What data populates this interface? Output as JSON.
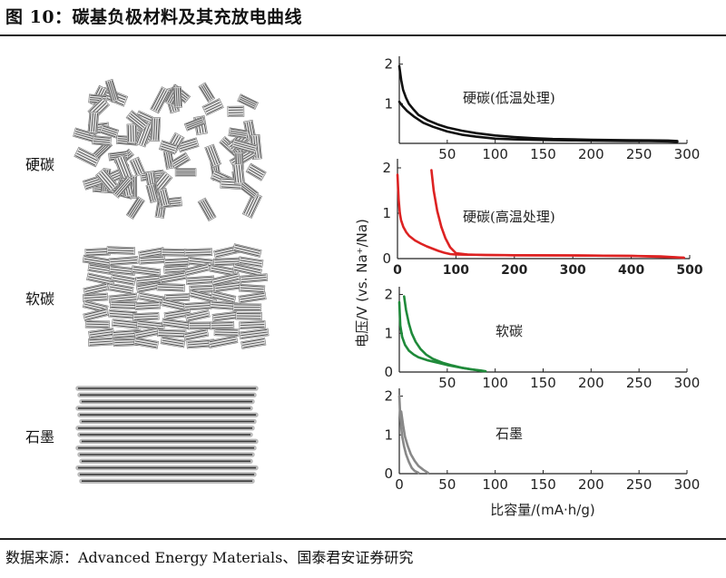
{
  "figure": {
    "title": "图 10：碳基负极材料及其充放电曲线",
    "source": "数据来源：Advanced Energy Materials、国泰君安证券研究"
  },
  "left_panel": {
    "labels": [
      "硬碳",
      "软碳",
      "石墨"
    ]
  },
  "chart_data": [
    {
      "type": "line",
      "name": "硬碳(低温处理)",
      "annotation": "硬碳(低温处理)",
      "xlim": [
        0,
        300
      ],
      "ylim": [
        0,
        2.2
      ],
      "xticks": [
        50,
        100,
        150,
        200,
        250,
        300
      ],
      "yticks": [
        1,
        2
      ],
      "color": "#111111",
      "series": [
        {
          "x": [
            0,
            2,
            4,
            7,
            10,
            15,
            20,
            30,
            40,
            50,
            65,
            80,
            100,
            120,
            140,
            160,
            180,
            200,
            220,
            240,
            260,
            280,
            290
          ],
          "y": [
            1.95,
            1.6,
            1.35,
            1.15,
            1.0,
            0.85,
            0.72,
            0.58,
            0.48,
            0.4,
            0.32,
            0.26,
            0.2,
            0.16,
            0.13,
            0.11,
            0.1,
            0.09,
            0.085,
            0.08,
            0.075,
            0.07,
            0.06
          ]
        },
        {
          "x": [
            0,
            3,
            8,
            15,
            25,
            35,
            50,
            65,
            80,
            100,
            120,
            140,
            160,
            180,
            200,
            220,
            240,
            260,
            280,
            290
          ],
          "y": [
            1.05,
            0.95,
            0.82,
            0.68,
            0.52,
            0.42,
            0.3,
            0.22,
            0.17,
            0.12,
            0.1,
            0.09,
            0.08,
            0.075,
            0.07,
            0.065,
            0.06,
            0.06,
            0.05,
            0.04
          ]
        }
      ]
    },
    {
      "type": "line",
      "name": "硬碳(高温处理)",
      "annotation": "硬碳(高温处理)",
      "ylabel": "电压/V (vs. Na⁺/Na)",
      "xlim": [
        0,
        500
      ],
      "ylim": [
        0,
        2.2
      ],
      "xticks": [
        0,
        100,
        200,
        300,
        400,
        500
      ],
      "yticks": [
        0,
        1,
        2
      ],
      "color": "#dd2222",
      "series": [
        {
          "x": [
            0,
            2,
            4,
            6,
            10,
            15,
            20,
            30,
            40,
            50,
            60,
            70,
            80,
            90,
            100,
            150,
            200,
            300,
            400,
            450,
            490
          ],
          "y": [
            1.85,
            1.3,
            1.0,
            0.85,
            0.7,
            0.58,
            0.5,
            0.4,
            0.33,
            0.27,
            0.22,
            0.17,
            0.13,
            0.1,
            0.09,
            0.08,
            0.075,
            0.07,
            0.06,
            0.05,
            0.02
          ]
        },
        {
          "x": [
            58,
            62,
            68,
            75,
            82,
            90,
            100,
            120,
            150,
            200,
            300,
            400,
            490
          ],
          "y": [
            1.95,
            1.5,
            1.05,
            0.7,
            0.45,
            0.25,
            0.12,
            0.09,
            0.08,
            0.075,
            0.07,
            0.06,
            0.02
          ]
        }
      ]
    },
    {
      "type": "line",
      "name": "软碳",
      "annotation": "软碳",
      "xlim": [
        0,
        300
      ],
      "ylim": [
        0,
        2.2
      ],
      "xticks": [
        50,
        100,
        150,
        200,
        250,
        300
      ],
      "yticks": [
        0,
        1,
        2
      ],
      "color": "#1f8a3a",
      "series": [
        {
          "x": [
            0,
            1,
            3,
            6,
            10,
            15,
            20,
            30,
            40,
            50,
            60,
            70,
            80,
            88
          ],
          "y": [
            1.8,
            1.2,
            0.9,
            0.7,
            0.55,
            0.45,
            0.38,
            0.3,
            0.24,
            0.18,
            0.13,
            0.09,
            0.05,
            0.02
          ]
        },
        {
          "x": [
            5,
            7,
            10,
            13,
            17,
            22,
            28,
            35,
            45,
            55,
            65,
            75,
            85,
            90
          ],
          "y": [
            1.95,
            1.6,
            1.25,
            1.0,
            0.78,
            0.6,
            0.45,
            0.34,
            0.24,
            0.17,
            0.11,
            0.07,
            0.04,
            0.02
          ]
        }
      ]
    },
    {
      "type": "line",
      "name": "石墨",
      "annotation": "石墨",
      "xlabel": "比容量/(mA·h/g)",
      "xlim": [
        0,
        300
      ],
      "ylim": [
        0,
        2.2
      ],
      "xticks": [
        0,
        50,
        100,
        150,
        200,
        250,
        300
      ],
      "yticks": [
        0,
        1,
        2
      ],
      "color": "#888888",
      "series": [
        {
          "x": [
            0,
            1,
            2,
            3,
            5,
            7,
            10,
            13,
            16,
            20
          ],
          "y": [
            2.0,
            1.5,
            1.2,
            0.95,
            0.7,
            0.5,
            0.3,
            0.15,
            0.07,
            0.02
          ]
        },
        {
          "x": [
            2,
            4,
            6,
            9,
            12,
            16,
            20,
            25,
            30
          ],
          "y": [
            1.6,
            1.25,
            0.95,
            0.7,
            0.5,
            0.33,
            0.2,
            0.1,
            0.02
          ]
        }
      ]
    }
  ]
}
